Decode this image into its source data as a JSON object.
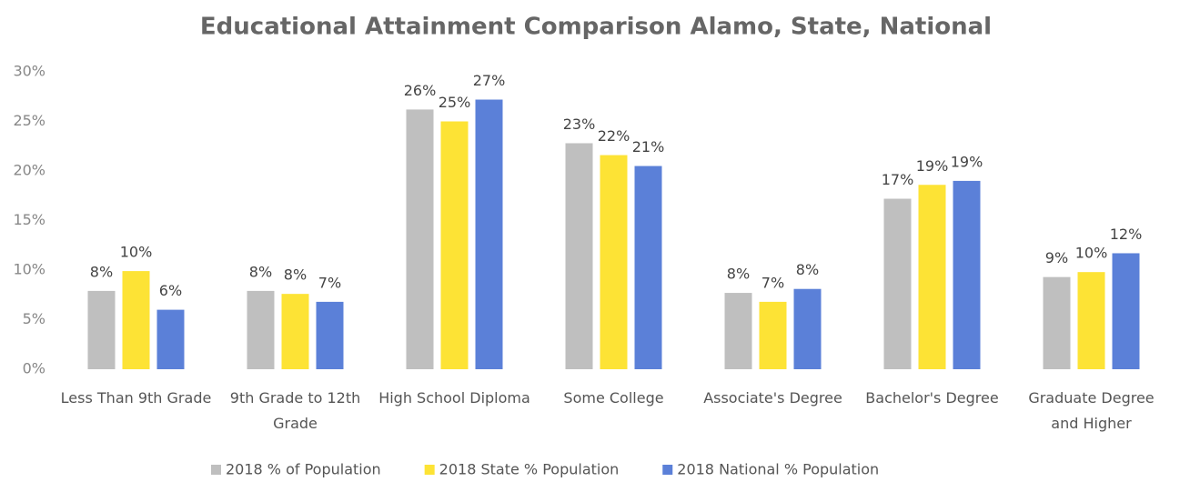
{
  "chart_data": {
    "type": "bar",
    "title": "Educational Attainment Comparison Alamo,  State, National",
    "categories": [
      "Less Than 9th Grade",
      "9th Grade to 12th Grade",
      "High School Diploma",
      "Some College",
      "Associate's Degree",
      "Bachelor's Degree",
      "Graduate Degree and Higher"
    ],
    "series": [
      {
        "name": "2018 % of Population",
        "color": "#bfbfbf",
        "values": [
          7.9,
          7.9,
          26.2,
          22.8,
          7.7,
          17.2,
          9.3
        ],
        "value_labels": [
          "8%",
          "8%",
          "26%",
          "23%",
          "8%",
          "17%",
          "9%"
        ]
      },
      {
        "name": "2018 State % Population",
        "color": "#fde335",
        "values": [
          9.9,
          7.6,
          25.0,
          21.6,
          6.8,
          18.6,
          9.8
        ],
        "value_labels": [
          "10%",
          "8%",
          "25%",
          "22%",
          "7%",
          "19%",
          "10%"
        ]
      },
      {
        "name": "2018 National % Population",
        "color": "#5b80d8",
        "values": [
          6.0,
          6.8,
          27.2,
          20.5,
          8.1,
          19.0,
          11.7
        ],
        "value_labels": [
          "6%",
          "7%",
          "27%",
          "21%",
          "8%",
          "19%",
          "12%"
        ]
      }
    ],
    "ylim": [
      0,
      30
    ],
    "yticks": [
      {
        "value": 0,
        "label": "0%"
      },
      {
        "value": 5,
        "label": "5%"
      },
      {
        "value": 10,
        "label": "10%"
      },
      {
        "value": 15,
        "label": "15%"
      },
      {
        "value": 20,
        "label": "20%"
      },
      {
        "value": 25,
        "label": "25%"
      },
      {
        "value": 30,
        "label": "30%"
      }
    ],
    "grid": false,
    "legend": "bottom"
  }
}
